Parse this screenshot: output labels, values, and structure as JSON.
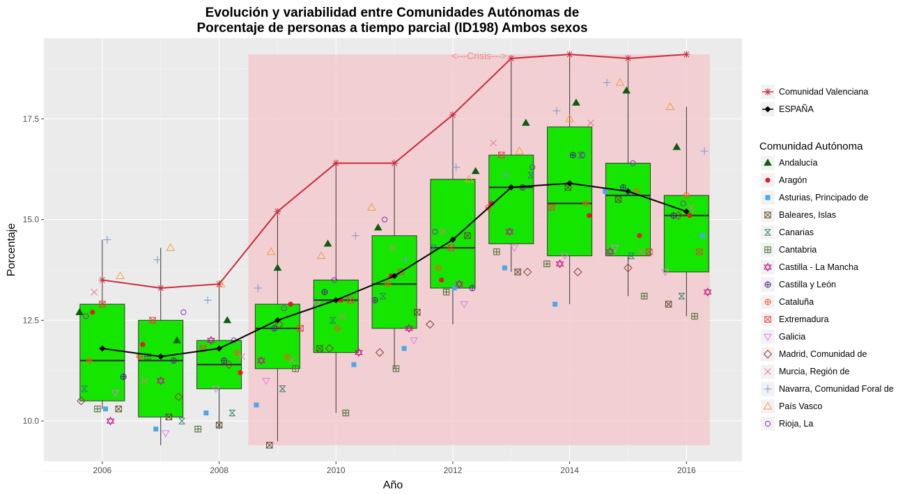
{
  "chart_data": {
    "type": "boxplot",
    "title": [
      "Evolución y variabilidad entre Comunidades Autónomas de",
      "Porcentaje de personas a tiempo parcial (ID198) Ambos sexos"
    ],
    "xlabel": "Año",
    "ylabel": "Porcentaje",
    "xlim": [
      2005.0,
      2016.95
    ],
    "ylim": [
      9.0,
      19.5
    ],
    "xticks": [
      2006,
      2008,
      2010,
      2012,
      2014,
      2016
    ],
    "yticks": [
      10.0,
      12.5,
      15.0,
      17.5
    ],
    "ytick_labels": [
      "10.0",
      "12.5",
      "15.0",
      "17.5"
    ],
    "grid": true,
    "legend_position": "right",
    "crisis": {
      "label": "<---Crisis--->",
      "x_start": 2008.5,
      "x_end": 2016.4,
      "y_low": 9.4,
      "y_high": 19.1,
      "color": "#f4c6c9"
    },
    "box_color": "#15e600",
    "boxes": [
      {
        "year": 2006,
        "whisker_low": 10.3,
        "q1": 10.5,
        "median": 11.5,
        "q3": 12.9,
        "whisker_high": 14.5
      },
      {
        "year": 2007,
        "whisker_low": 9.4,
        "q1": 10.1,
        "median": 11.5,
        "q3": 12.5,
        "whisker_high": 14.3
      },
      {
        "year": 2008,
        "whisker_low": 9.8,
        "q1": 10.8,
        "median": 11.4,
        "q3": 12.0,
        "whisker_high": 13.4
      },
      {
        "year": 2009,
        "whisker_low": 9.5,
        "q1": 11.3,
        "median": 12.3,
        "q3": 12.9,
        "whisker_high": 15.2
      },
      {
        "year": 2010,
        "whisker_low": 10.2,
        "q1": 11.7,
        "median": 13.0,
        "q3": 13.5,
        "whisker_high": 16.4
      },
      {
        "year": 2011,
        "whisker_low": 11.3,
        "q1": 12.3,
        "median": 13.4,
        "q3": 14.6,
        "whisker_high": 16.4
      },
      {
        "year": 2012,
        "whisker_low": 12.4,
        "q1": 13.3,
        "median": 14.3,
        "q3": 16.0,
        "whisker_high": 17.6
      },
      {
        "year": 2013,
        "whisker_low": 13.7,
        "q1": 14.4,
        "median": 15.8,
        "q3": 16.6,
        "whisker_high": 19.0
      },
      {
        "year": 2014,
        "whisker_low": 12.9,
        "q1": 14.1,
        "median": 15.4,
        "q3": 17.3,
        "whisker_high": 19.1
      },
      {
        "year": 2015,
        "whisker_low": 13.1,
        "q1": 14.1,
        "median": 15.6,
        "q3": 16.4,
        "whisker_high": 19.0
      },
      {
        "year": 2016,
        "whisker_low": 12.6,
        "q1": 13.7,
        "median": 15.1,
        "q3": 15.6,
        "whisker_high": 17.8
      }
    ],
    "series": [
      {
        "name": "Comunidad Valenciana",
        "color": "#c72b3a",
        "marker": "asterisk",
        "x": [
          2006,
          2007,
          2008,
          2009,
          2010,
          2011,
          2012,
          2013,
          2014,
          2015,
          2016
        ],
        "values": [
          13.5,
          13.3,
          13.4,
          15.2,
          16.4,
          16.4,
          17.6,
          19.0,
          19.1,
          19.0,
          19.1
        ]
      },
      {
        "name": "ESPAÑA",
        "color": "#000000",
        "marker": "diamond",
        "x": [
          2006,
          2007,
          2008,
          2009,
          2010,
          2011,
          2012,
          2013,
          2014,
          2015,
          2016
        ],
        "values": [
          11.8,
          11.6,
          11.8,
          12.5,
          13.0,
          13.6,
          14.5,
          15.8,
          15.9,
          15.7,
          15.2
        ]
      }
    ],
    "legend_top": [
      {
        "name": "Comunidad Valenciana",
        "marker": "asterisk",
        "color": "#c72b3a",
        "line": true
      },
      {
        "name": "ESPAÑA",
        "marker": "diamond",
        "color": "#000000",
        "line": true
      }
    ],
    "legend_title": "Comunidad Autónoma",
    "regions": [
      {
        "name": "Andalucía",
        "marker": "triangle-filled",
        "color": "#0b5e0b",
        "values": [
          12.7,
          12.0,
          12.5,
          13.8,
          14.4,
          14.8,
          16.2,
          17.4,
          17.9,
          18.2,
          16.8
        ]
      },
      {
        "name": "Aragón",
        "marker": "circle-filled",
        "color": "#e31a1c",
        "values": [
          12.7,
          11.9,
          11.2,
          12.9,
          13.0,
          13.6,
          13.5,
          15.4,
          15.1,
          14.6,
          15.1
        ]
      },
      {
        "name": "Asturias, Principado de",
        "marker": "square-filled",
        "color": "#4da6e6",
        "values": [
          10.3,
          9.8,
          10.2,
          10.4,
          11.4,
          11.8,
          13.3,
          13.8,
          12.9,
          15.7,
          14.6
        ]
      },
      {
        "name": "Baleares, Islas",
        "marker": "square-x",
        "color": "#5a4628",
        "values": [
          10.3,
          10.1,
          9.9,
          9.4,
          11.8,
          12.7,
          14.6,
          13.7,
          15.8,
          15.5,
          12.9
        ]
      },
      {
        "name": "Canarias",
        "marker": "square-cross-x",
        "color": "#2e7d6e",
        "values": [
          10.8,
          10.0,
          10.2,
          10.8,
          12.5,
          13.1,
          14.3,
          16.1,
          16.6,
          14.1,
          13.1
        ]
      },
      {
        "name": "Cantabria",
        "marker": "square-plus",
        "color": "#3d6b2c",
        "values": [
          10.3,
          11.6,
          9.8,
          11.3,
          10.2,
          11.3,
          13.2,
          14.2,
          13.9,
          13.1,
          12.6
        ]
      },
      {
        "name": "Castilla - La Mancha",
        "marker": "star-of-david",
        "color": "#c1188a",
        "values": [
          10.0,
          11.0,
          12.0,
          11.5,
          11.7,
          12.3,
          13.4,
          14.7,
          13.9,
          14.2,
          13.2
        ]
      },
      {
        "name": "Castilla y León",
        "marker": "circle-plus",
        "color": "#4b1d91",
        "values": [
          11.1,
          11.5,
          11.5,
          12.3,
          13.2,
          13.0,
          13.3,
          15.8,
          16.6,
          15.8,
          15.1
        ]
      },
      {
        "name": "Cataluña",
        "marker": "circle-plus",
        "color": "#f0571a",
        "values": [
          11.5,
          11.6,
          11.7,
          11.6,
          12.3,
          13.4,
          13.8,
          15.3,
          15.4,
          15.7,
          15.6
        ]
      },
      {
        "name": "Extremadura",
        "marker": "square-x",
        "color": "#e0443a",
        "values": [
          12.9,
          12.5,
          11.8,
          12.3,
          13.0,
          13.7,
          14.3,
          16.6,
          15.3,
          14.2,
          14.2
        ]
      },
      {
        "name": "Galicia",
        "marker": "triangle-down",
        "color": "#e27ae8",
        "values": [
          10.7,
          9.7,
          10.8,
          11.0,
          12.9,
          12.0,
          12.9,
          14.3,
          14.1,
          14.3,
          13.7
        ]
      },
      {
        "name": "Madrid, Comunidad de",
        "marker": "diamond-open",
        "color": "#8b3a2e",
        "values": [
          10.5,
          10.6,
          11.4,
          12.4,
          11.8,
          11.7,
          12.4,
          13.7,
          13.7,
          13.8,
          15.1
        ]
      },
      {
        "name": "Murcia, Región de",
        "marker": "cross-x",
        "color": "#f0708e",
        "values": [
          13.2,
          11.0,
          11.6,
          11.5,
          12.6,
          14.3,
          14.7,
          16.9,
          17.4,
          14.2,
          15.3
        ]
      },
      {
        "name": "Navarra, Comunidad Foral de",
        "marker": "plus",
        "color": "#6f9bd6",
        "values": [
          14.5,
          14.0,
          13.0,
          13.3,
          14.6,
          14.0,
          16.3,
          16.1,
          17.7,
          18.4,
          16.7
        ]
      },
      {
        "name": "País Vasco",
        "marker": "triangle-open",
        "color": "#f59a3d",
        "values": [
          13.6,
          14.3,
          13.4,
          14.2,
          14.1,
          15.3,
          16.0,
          16.7,
          17.5,
          18.4,
          17.8
        ]
      },
      {
        "name": "Rioja, La",
        "marker": "circle-open",
        "color": "#7d2fae",
        "values": [
          12.6,
          12.7,
          12.0,
          12.8,
          13.5,
          15.0,
          14.7,
          16.3,
          16.6,
          16.4,
          15.4
        ]
      }
    ]
  }
}
